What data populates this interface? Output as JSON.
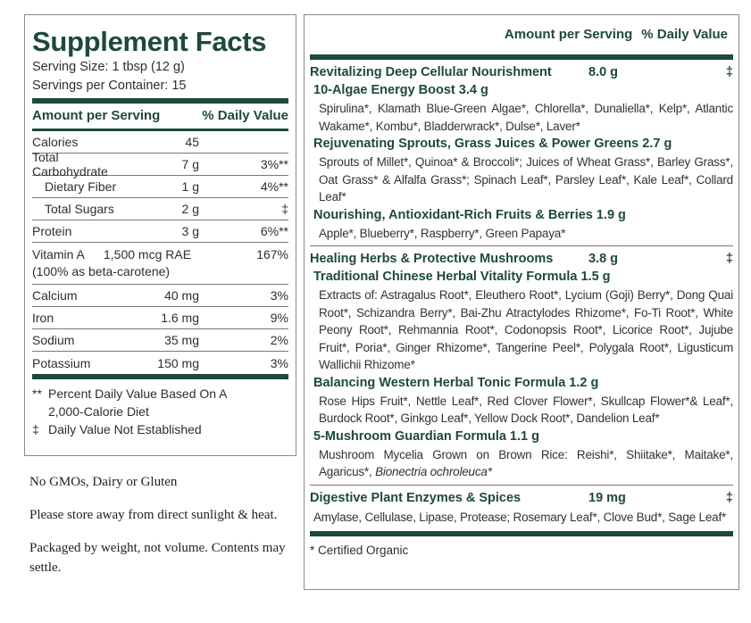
{
  "left": {
    "title": "Supplement Facts",
    "serving_size": "Serving Size: 1 tbsp (12 g)",
    "servings_per_container": "Servings per Container: 15",
    "header": {
      "amount": "Amount per Serving",
      "dv": "% Daily Value"
    },
    "rows": [
      {
        "name": "Calories",
        "amount": "45",
        "dv": ""
      },
      {
        "name": "Total Carbohydrate",
        "amount": "7 g",
        "dv": "3%**"
      },
      {
        "name": "Dietary Fiber",
        "amount": "1 g",
        "dv": "4%**"
      },
      {
        "name": "Total Sugars",
        "amount": "2 g",
        "dv": "‡"
      },
      {
        "name": "Protein",
        "amount": "3 g",
        "dv": "6%**"
      },
      {
        "name": "Vitamin A",
        "amount": "1,500 mcg RAE",
        "dv": "167%",
        "note": "(100% as beta-carotene)"
      },
      {
        "name": "Calcium",
        "amount": "40 mg",
        "dv": "3%"
      },
      {
        "name": "Iron",
        "amount": "1.6 mg",
        "dv": "9%"
      },
      {
        "name": "Sodium",
        "amount": "35 mg",
        "dv": "2%"
      },
      {
        "name": "Potassium",
        "amount": "150 mg",
        "dv": "3%"
      }
    ],
    "footnotes": [
      {
        "sym": "**",
        "text": "Percent Daily Value Based On A",
        "text2": "2,000-Calorie Diet"
      },
      {
        "sym": "‡",
        "text": "Daily Value Not Established"
      }
    ]
  },
  "notes": [
    "No GMOs, Dairy or Gluten",
    "Please store away from direct sunlight & heat.",
    "Packaged by weight, not volume. Contents may settle."
  ],
  "right": {
    "header": {
      "amount": "Amount per Serving",
      "dv": "% Daily Value"
    },
    "sections": [
      {
        "title": "Revitalizing Deep Cellular Nourishment",
        "amount": "8.0 g",
        "dv": "‡",
        "subs": [
          {
            "title": "10-Algae Energy Boost 3.4 g",
            "ingredients": "Spirulina*, Klamath Blue-Green Algae*, Chlorella*, Dunaliella*, Kelp*, Atlantic Wakame*, Kombu*, Bladderwrack*, Dulse*, Laver*"
          },
          {
            "title": "Rejuvenating Sprouts, Grass Juices & Power Greens 2.7 g",
            "ingredients": "Sprouts of Millet*, Quinoa* & Broccoli*; Juices of Wheat Grass*, Barley Grass*, Oat Grass* & Alfalfa Grass*; Spinach Leaf*, Parsley Leaf*, Kale Leaf*, Collard Leaf*"
          },
          {
            "title": "Nourishing, Antioxidant-Rich Fruits & Berries 1.9 g",
            "ingredients": "Apple*, Blueberry*, Raspberry*, Green Papaya*"
          }
        ]
      },
      {
        "title": "Healing Herbs & Protective Mushrooms",
        "amount": "3.8 g",
        "dv": "‡",
        "subs": [
          {
            "title": "Traditional Chinese Herbal Vitality Formula 1.5 g",
            "ingredients": "Extracts of: Astragalus Root*, Eleuthero Root*, Lycium (Goji) Berry*, Dong Quai Root*, Schizandra Berry*, Bai-Zhu Atractylodes Rhizome*, Fo-Ti Root*, White Peony Root*, Rehmannia Root*, Codonopsis Root*, Licorice Root*, Jujube Fruit*, Poria*, Ginger Rhizome*, Tangerine Peel*, Polygala Root*, Ligusticum Wallichii Rhizome*"
          },
          {
            "title": "Balancing Western Herbal Tonic Formula 1.2 g",
            "ingredients": "Rose Hips Fruit*, Nettle Leaf*, Red Clover Flower*, Skullcap Flower*& Leaf*, Burdock Root*, Ginkgo Leaf*, Yellow Dock Root*, Dandelion Leaf*"
          },
          {
            "title": "5-Mushroom Guardian Formula 1.1 g",
            "ingredients": "Mushroom Mycelia Grown on Brown Rice: Reishi*, Shiitake*, Maitake*, Agaricus*,",
            "ingredients_italic": "Bionectria ochroleuca*"
          }
        ]
      },
      {
        "title": "Digestive Plant Enzymes & Spices",
        "amount": "19 mg",
        "dv": "‡",
        "ingredients": "Amylase, Cellulase, Lipase, Protease; Rosemary Leaf*, Clove Bud*, Sage Leaf*"
      }
    ],
    "certified": "* Certified Organic"
  },
  "colors": {
    "brand_green": "#1e4a36"
  }
}
